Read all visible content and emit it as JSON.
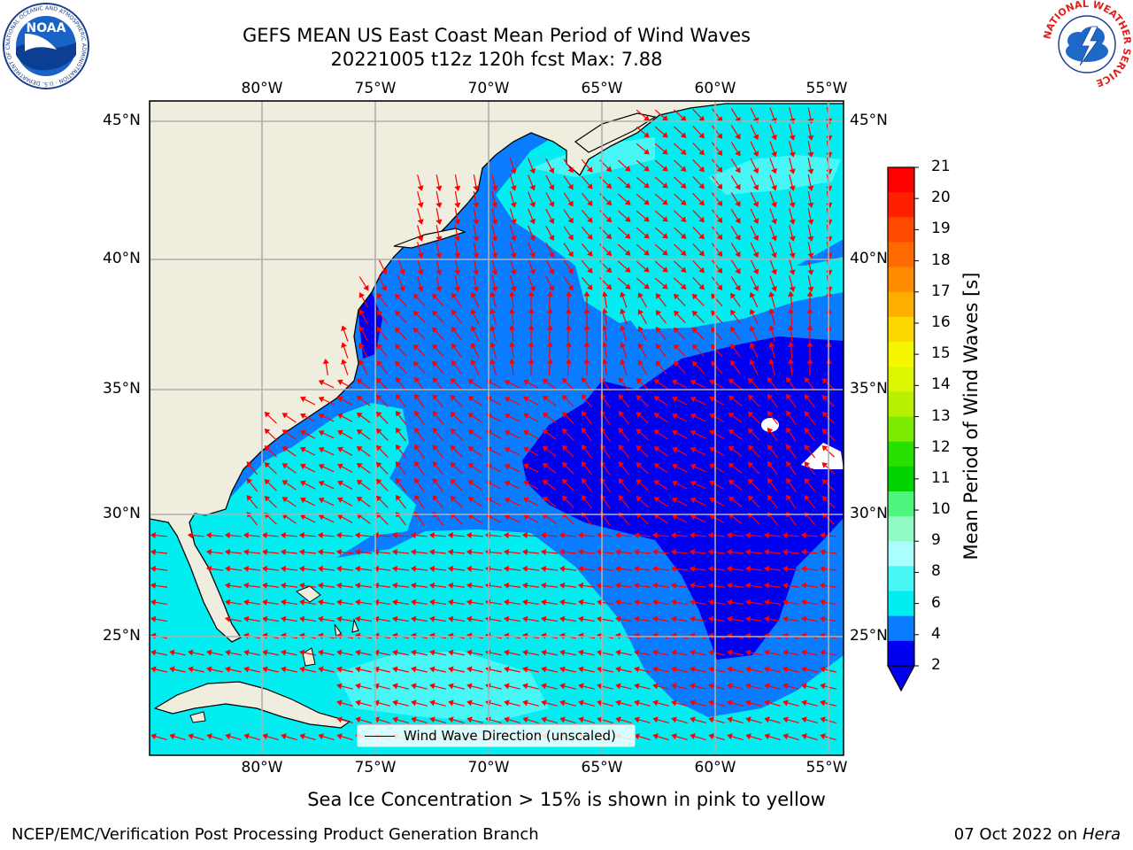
{
  "header": {
    "title_line1": "GEFS MEAN US East Coast Mean Period of Wind Waves",
    "title_line2": "20221005 t12z 120h fcst   Max: 7.88"
  },
  "logos": {
    "noaa_text": "NOAA",
    "noaa_ring_text": "NATIONAL OCEANIC AND ATMOSPHERIC ADMINISTRATION · U.S. DEPARTMENT OF COMMERCE",
    "nws_ring_text": "NATIONAL WEATHER SERVICE"
  },
  "map": {
    "lon_labels": [
      "80°W",
      "75°W",
      "70°W",
      "65°W",
      "60°W",
      "55°W"
    ],
    "lat_labels": [
      "45°N",
      "40°N",
      "35°N",
      "30°N",
      "25°N"
    ],
    "legend_label": "Wind Wave Direction (unscaled)",
    "colors": {
      "land": "#efedde",
      "period_2_4": "#0a7cff",
      "period_4_6": "#00eef0",
      "period_6_8": "#48f6f6",
      "period_below_2": "#0000f0",
      "arrows": "#ff0000",
      "grid": "#b0b0b0"
    }
  },
  "colorbar": {
    "title": "Mean Period of Wind Waves [s]",
    "ticks": [
      "21",
      "20",
      "19",
      "18",
      "17",
      "16",
      "15",
      "14",
      "13",
      "12",
      "11",
      "10",
      "9",
      "8",
      "6",
      "4",
      "2"
    ],
    "colors_top_to_bottom": [
      "#ff0000",
      "#ff2000",
      "#ff4a00",
      "#ff6a00",
      "#ff8c00",
      "#ffae00",
      "#ffd700",
      "#f6f600",
      "#dcf500",
      "#b9f000",
      "#7ceb00",
      "#27e000",
      "#00d200",
      "#50f57d",
      "#90fcc4",
      "#aafefe",
      "#48f6f6",
      "#00eef0",
      "#0a7cff",
      "#0000f0"
    ]
  },
  "footer": {
    "sea_ice_note": "Sea Ice Concentration > 15% is shown in pink to yellow",
    "left": "NCEP/EMC/Verification Post Processing Product Generation Branch",
    "right_date": "07 Oct 2022 on",
    "right_machine": "Hera"
  }
}
